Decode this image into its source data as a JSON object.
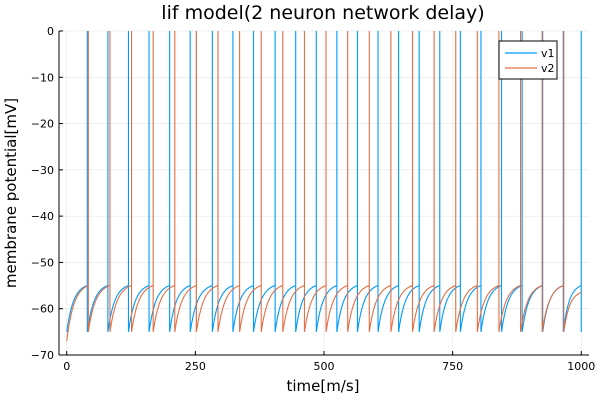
{
  "chart_data": {
    "type": "line",
    "title": "lif model(2 neuron network delay)",
    "xlabel": "time[m/s]",
    "ylabel": "membrane potential[mV]",
    "xlim": [
      -15,
      1015
    ],
    "ylim": [
      -70,
      0
    ],
    "x_ticks": [
      0,
      250,
      500,
      750,
      1000
    ],
    "y_ticks": [
      0,
      -10,
      -20,
      -30,
      -40,
      -50,
      -60,
      -70
    ],
    "grid": true,
    "legend_position": "top-right",
    "v_rest": -65,
    "v_threshold": -55,
    "v_spike": 0,
    "series": [
      {
        "name": "v1",
        "color": "#009af9",
        "start_value": -65,
        "spike_times": [
          40,
          80,
          120,
          160,
          200,
          240,
          283,
          323,
          363,
          405,
          445,
          485,
          525,
          565,
          605,
          645,
          685,
          725,
          765,
          805,
          845,
          885,
          925,
          965,
          1000
        ]
      },
      {
        "name": "v2",
        "color": "#e26f46",
        "start_value": -67,
        "spike_times": [
          42,
          84,
          126,
          168,
          210,
          252,
          294,
          336,
          378,
          420,
          462,
          504,
          546,
          588,
          630,
          672,
          714,
          756,
          798,
          840,
          882,
          924,
          966
        ]
      }
    ]
  }
}
